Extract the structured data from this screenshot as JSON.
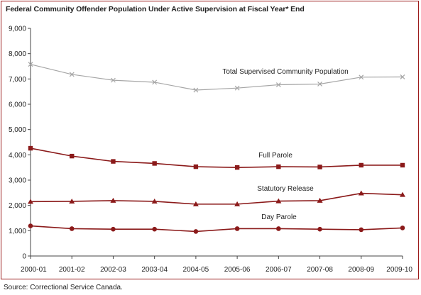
{
  "chart_data": {
    "type": "line",
    "title": "Federal Community Offender Population Under Active Supervision at Fiscal Year* End",
    "xlabel": "",
    "ylabel": "",
    "ylim": [
      0,
      9000
    ],
    "yticks": [
      "0",
      "1,000",
      "2,000",
      "3,000",
      "4,000",
      "5,000",
      "6,000",
      "7,000",
      "8,000",
      "9,000"
    ],
    "categories": [
      "2000-01",
      "2001-02",
      "2002-03",
      "2003-04",
      "2004-05",
      "2005-06",
      "2006-07",
      "2007-08",
      "2008-09",
      "2009-10"
    ],
    "grid": false,
    "legend": "inline labels",
    "series": [
      {
        "name": "Total Supervised Community Population",
        "marker": "x",
        "color": "#a6a6a6",
        "values": [
          7580,
          7180,
          6950,
          6870,
          6560,
          6640,
          6770,
          6800,
          7070,
          7080
        ]
      },
      {
        "name": "Full Parole",
        "marker": "square",
        "color": "#8b1a1a",
        "values": [
          4260,
          3950,
          3740,
          3660,
          3530,
          3500,
          3530,
          3520,
          3590,
          3590
        ]
      },
      {
        "name": "Statutory Release",
        "marker": "triangle",
        "color": "#8b1a1a",
        "values": [
          2150,
          2160,
          2190,
          2160,
          2050,
          2050,
          2170,
          2190,
          2480,
          2420
        ]
      },
      {
        "name": "Day Parole",
        "marker": "circle",
        "color": "#8b1a1a",
        "values": [
          1190,
          1080,
          1060,
          1060,
          970,
          1080,
          1080,
          1060,
          1040,
          1110
        ]
      }
    ]
  },
  "source": "Source:  Correctional Service Canada."
}
